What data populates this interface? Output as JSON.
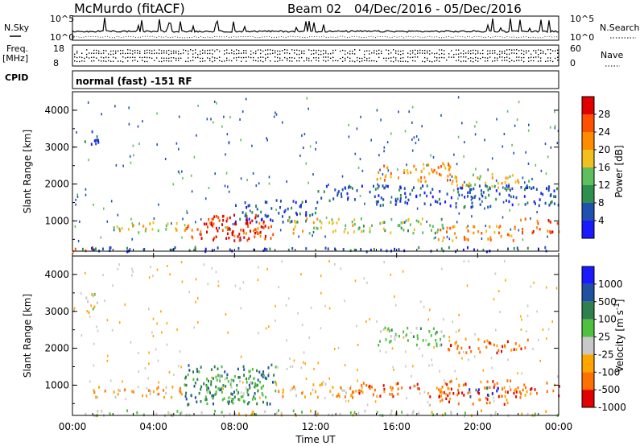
{
  "header": {
    "station": "McMurdo (fitACF)",
    "beam": "Beam 02",
    "date_range": "04/Dec/2016 - 05/Dec/2016"
  },
  "top_panels": {
    "nsky_label": "N.Sky",
    "nsearch_label": "N.Search",
    "nsky_ticks": [
      "10^5",
      "10^0"
    ],
    "nsearch_ticks": [
      "10^5",
      "10^0"
    ],
    "freq_label_1": "Freq.",
    "freq_label_2": "[MHz]",
    "freq_ticks": [
      "18",
      "8"
    ],
    "nave_label": "Nave",
    "nave_ticks": [
      "60",
      "0"
    ],
    "cpid_label": "CPID",
    "cpid_value": "normal (fast) -151 RF"
  },
  "colors": {
    "power": [
      "#1a1aff",
      "#2050b0",
      "#2f8f4f",
      "#5fbf5f",
      "#f0c020",
      "#ff8c00",
      "#ff5000",
      "#e00000"
    ],
    "velocity": [
      "#1a1aff",
      "#2050a0",
      "#2f7f4f",
      "#50c040",
      "#c8c8c8",
      "#ffa500",
      "#ff7000",
      "#e00000"
    ]
  },
  "chart_data": [
    {
      "type": "heatmap",
      "name": "power",
      "ylabel": "Slant Range [km]",
      "yticks": [
        "4000",
        "3000",
        "2000",
        "1000"
      ],
      "ylim": [
        180,
        4500
      ],
      "xlim": [
        0,
        24
      ],
      "colorbar_label": "Power [dB]",
      "colorbar_ticks": [
        "28",
        "24",
        "20",
        "16",
        "12",
        "8",
        "4"
      ],
      "colorbar_range": [
        0,
        32
      ],
      "regions": [
        {
          "t": [
            0,
            1.3
          ],
          "r": [
            200,
            330
          ],
          "level": 6
        },
        {
          "t": [
            0,
            24
          ],
          "r": [
            200,
            320
          ],
          "level": 1
        },
        {
          "t": [
            0.5,
            1.3
          ],
          "r": [
            3000,
            3500
          ],
          "level": 1
        },
        {
          "t": [
            2,
            5.3
          ],
          "r": [
            700,
            1000
          ],
          "level": 4
        },
        {
          "t": [
            5.5,
            10
          ],
          "r": [
            550,
            1000
          ],
          "level": 6
        },
        {
          "t": [
            6.5,
            9.5
          ],
          "r": [
            500,
            1200
          ],
          "level": 7
        },
        {
          "t": [
            8,
            12
          ],
          "r": [
            1000,
            1600
          ],
          "level": 1
        },
        {
          "t": [
            10.5,
            14
          ],
          "r": [
            700,
            1100
          ],
          "level": 4
        },
        {
          "t": [
            14,
            18.5
          ],
          "r": [
            700,
            1100
          ],
          "level": 3
        },
        {
          "t": [
            15,
            19
          ],
          "r": [
            2100,
            2600
          ],
          "level": 5
        },
        {
          "t": [
            18.5,
            22.5
          ],
          "r": [
            1900,
            2300
          ],
          "level": 4
        },
        {
          "t": [
            18,
            22
          ],
          "r": [
            500,
            900
          ],
          "level": 5
        },
        {
          "t": [
            22,
            24
          ],
          "r": [
            700,
            1100
          ],
          "level": 6
        },
        {
          "t": [
            12,
            24
          ],
          "r": [
            1400,
            2000
          ],
          "level": 1
        }
      ]
    },
    {
      "type": "heatmap",
      "name": "velocity",
      "ylabel": "Slant Range [km]",
      "yticks": [
        "4000",
        "3000",
        "2000",
        "1000"
      ],
      "ylim": [
        180,
        4500
      ],
      "xlim": [
        0,
        24
      ],
      "xlabel": "Time UT",
      "xticks": [
        "00:00",
        "04:00",
        "08:00",
        "12:00",
        "16:00",
        "20:00",
        "00:00"
      ],
      "colorbar_label": "Velocity [m s^-1]",
      "colorbar_ticks": [
        "1000",
        "500",
        "100",
        "25",
        "-25",
        "-100",
        "-500",
        "-1000"
      ],
      "colorbar_range": [
        -1200,
        1200
      ],
      "regions": [
        {
          "t": [
            0,
            24
          ],
          "r": [
            200,
            350
          ],
          "level": 4
        },
        {
          "t": [
            0.5,
            1.2
          ],
          "r": [
            3000,
            3500
          ],
          "level": 4
        },
        {
          "t": [
            1,
            5.5
          ],
          "r": [
            700,
            1000
          ],
          "level": 5
        },
        {
          "t": [
            5.5,
            10
          ],
          "r": [
            500,
            1600
          ],
          "level": 2
        },
        {
          "t": [
            6.5,
            9.5
          ],
          "r": [
            600,
            1300
          ],
          "level": 3
        },
        {
          "t": [
            10,
            14
          ],
          "r": [
            700,
            1100
          ],
          "level": 5
        },
        {
          "t": [
            14,
            18.5
          ],
          "r": [
            700,
            1100
          ],
          "level": 6
        },
        {
          "t": [
            15,
            18.5
          ],
          "r": [
            2100,
            2600
          ],
          "level": 3
        },
        {
          "t": [
            18.5,
            22.5
          ],
          "r": [
            1900,
            2300
          ],
          "level": 6
        },
        {
          "t": [
            18,
            22
          ],
          "r": [
            500,
            1200
          ],
          "level": 6
        },
        {
          "t": [
            19.5,
            21
          ],
          "r": [
            700,
            1000
          ],
          "level": 1
        },
        {
          "t": [
            22,
            24
          ],
          "r": [
            700,
            1100
          ],
          "level": 6
        }
      ]
    }
  ]
}
